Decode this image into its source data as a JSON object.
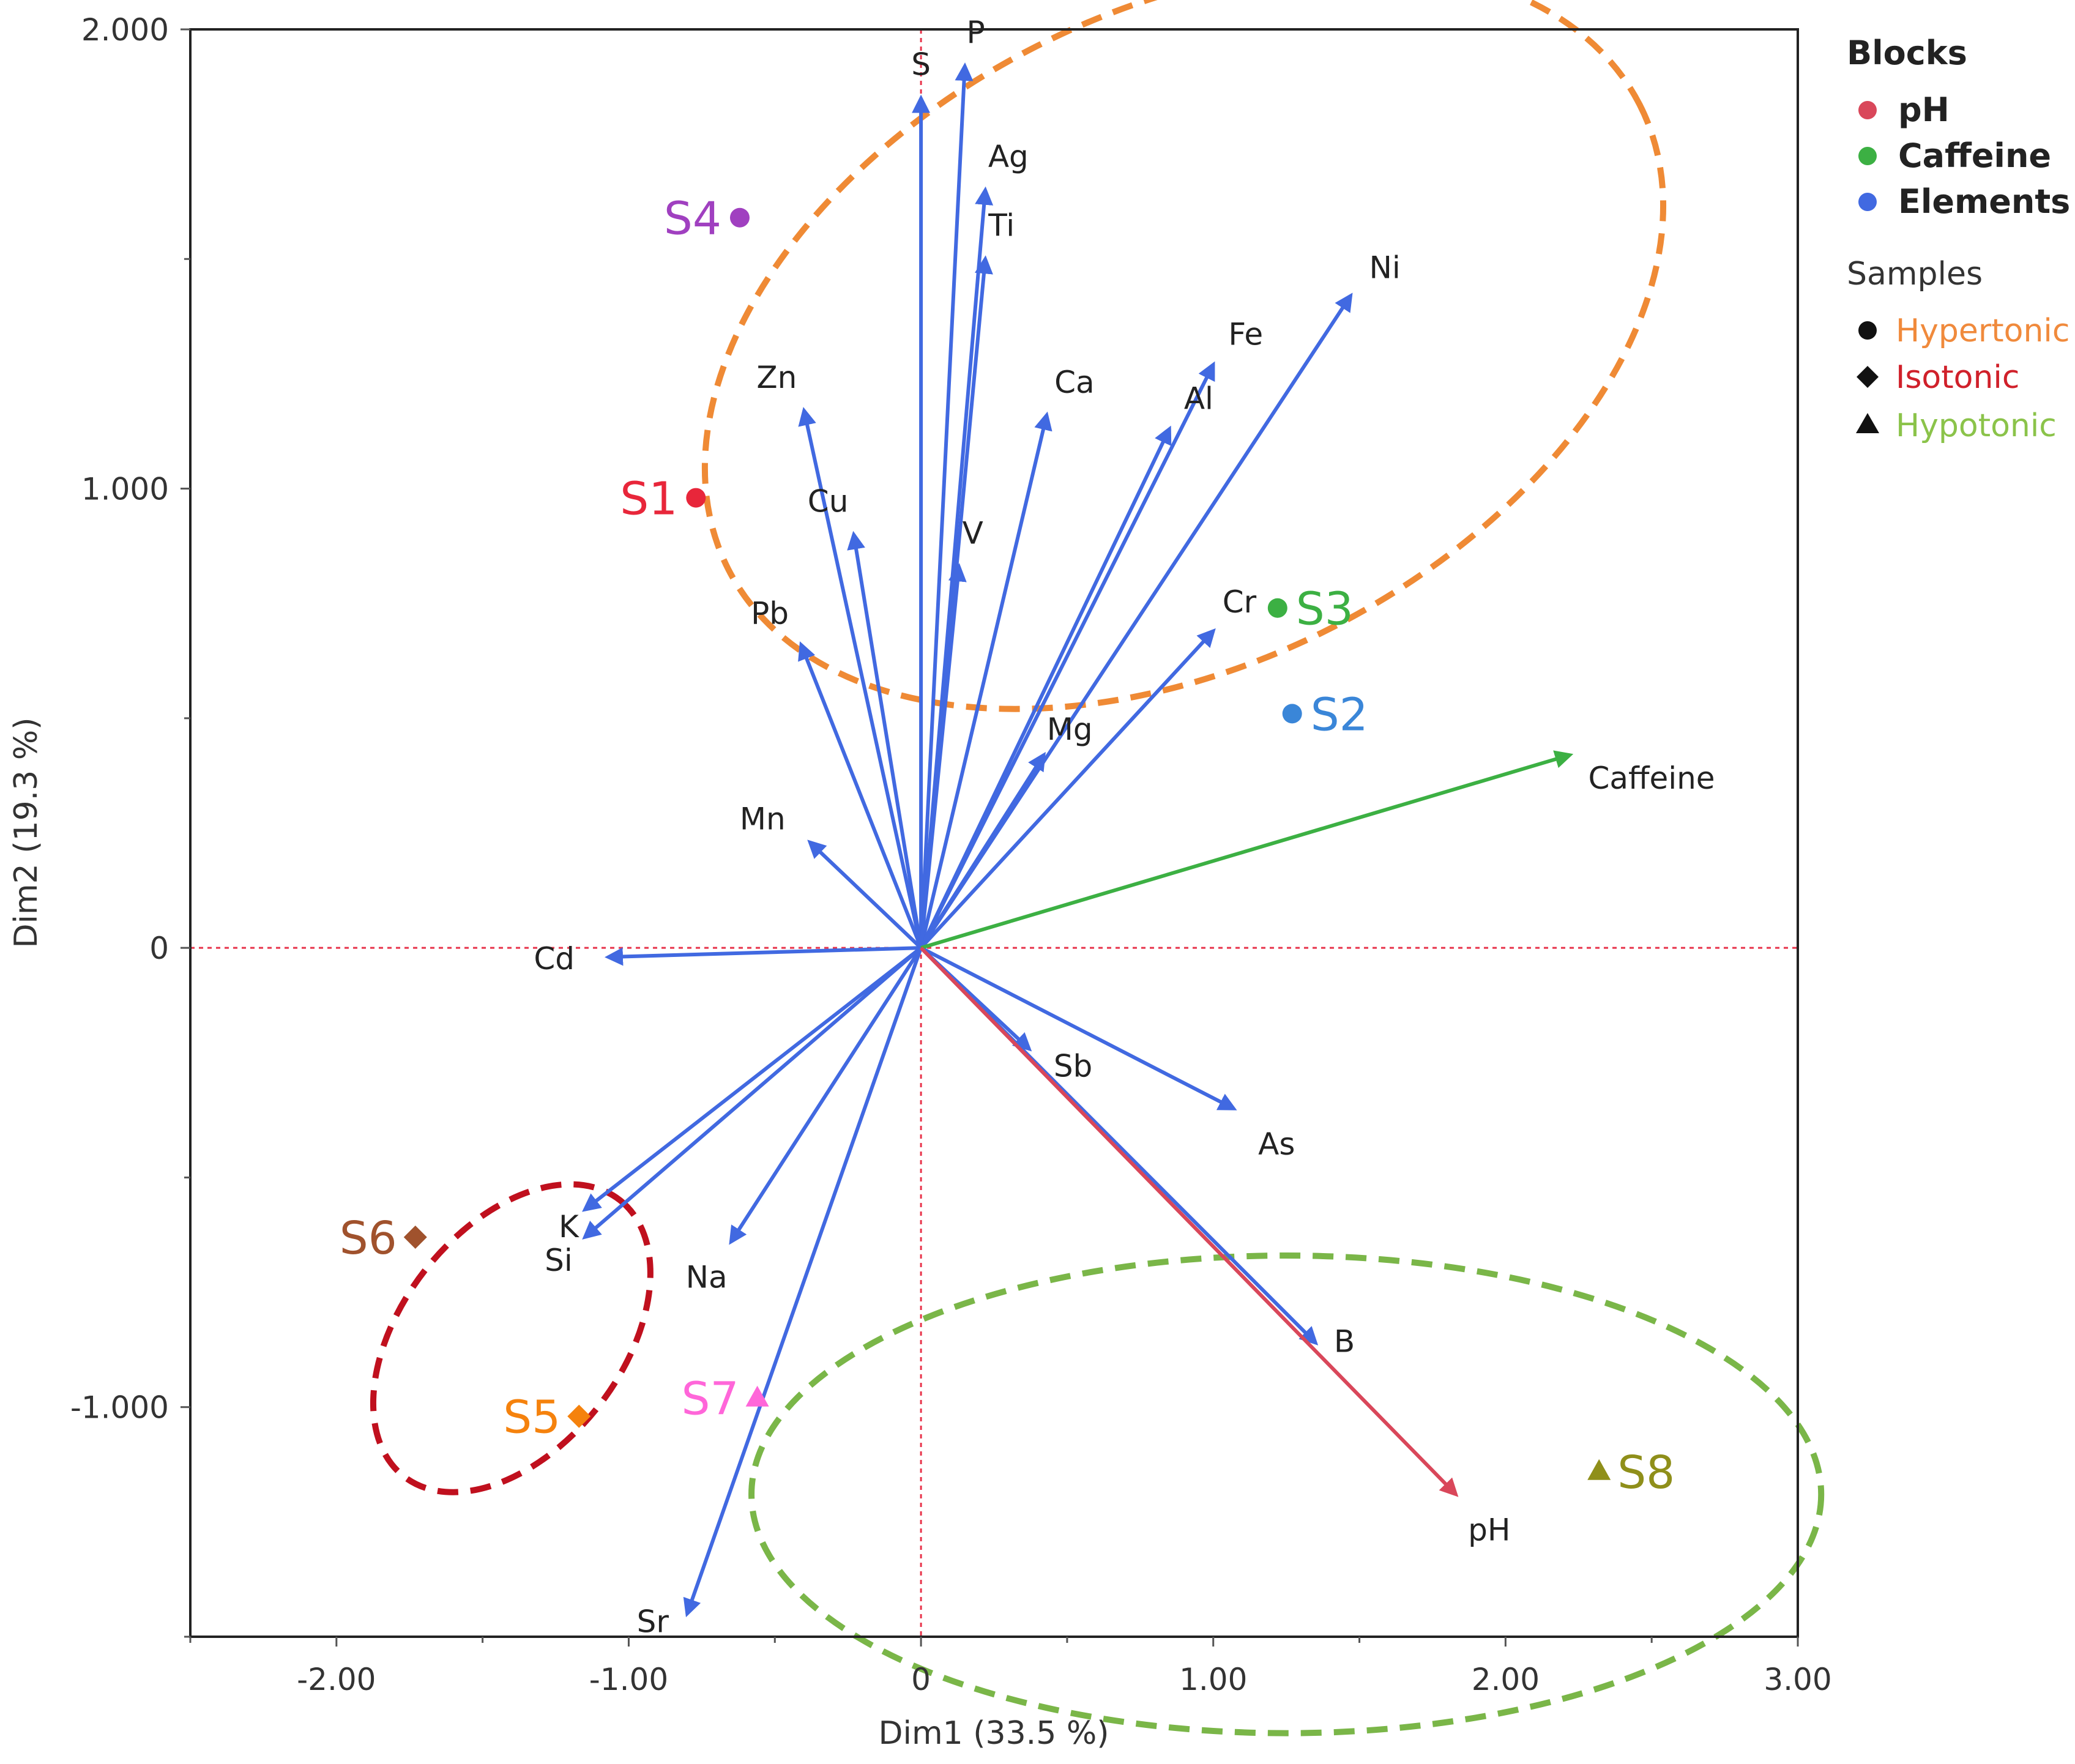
{
  "chart_data": {
    "type": "scatter",
    "subtype": "PCA biplot",
    "xlabel": "Dim1  (33.5 %)",
    "ylabel": "Dim2  (19.3 %)",
    "xlim": [
      -2.5,
      3.0
    ],
    "ylim": [
      -1.5,
      2.0
    ],
    "x_ticks": [
      {
        "value": -2.0,
        "label": "-2.00"
      },
      {
        "value": -1.0,
        "label": "-1.00"
      },
      {
        "value": 0.0,
        "label": "0"
      },
      {
        "value": 1.0,
        "label": "1.00"
      },
      {
        "value": 2.0,
        "label": "2.00"
      },
      {
        "value": 3.0,
        "label": "3.00"
      }
    ],
    "y_ticks": [
      {
        "value": 2.0,
        "label": "2.000"
      },
      {
        "value": 1.0,
        "label": "1.000"
      },
      {
        "value": 0.0,
        "label": "0"
      },
      {
        "value": -1.0,
        "label": "-1.000"
      }
    ],
    "reference_lines": {
      "x": 0,
      "y": 0,
      "color": "#e8334a"
    },
    "blocks_legend": {
      "title": "Blocks",
      "items": [
        {
          "name": "pH",
          "color": "#d9475a"
        },
        {
          "name": "Caffeine",
          "color": "#3cb043"
        },
        {
          "name": "Elements",
          "color": "#4169e1"
        }
      ]
    },
    "samples_legend": {
      "title": "Samples",
      "items": [
        {
          "name": "Hypertonic",
          "marker": "circle",
          "color": "#f08a3c"
        },
        {
          "name": "Isotonic",
          "marker": "diamond",
          "color": "#d0202a"
        },
        {
          "name": "Hypotonic",
          "marker": "triangle",
          "color": "#8bc34a"
        }
      ]
    },
    "vectors": [
      {
        "name": "P",
        "block": "Elements",
        "x": 0.15,
        "y": 1.92
      },
      {
        "name": "S",
        "block": "Elements",
        "x": 0.0,
        "y": 1.85
      },
      {
        "name": "Ag",
        "block": "Elements",
        "x": 0.22,
        "y": 1.65
      },
      {
        "name": "Ti",
        "block": "Elements",
        "x": 0.22,
        "y": 1.5
      },
      {
        "name": "Ni",
        "block": "Elements",
        "x": 1.47,
        "y": 1.42
      },
      {
        "name": "Fe",
        "block": "Elements",
        "x": 1.0,
        "y": 1.27
      },
      {
        "name": "Ca",
        "block": "Elements",
        "x": 0.43,
        "y": 1.16
      },
      {
        "name": "Al",
        "block": "Elements",
        "x": 0.85,
        "y": 1.13
      },
      {
        "name": "Zn",
        "block": "Elements",
        "x": -0.4,
        "y": 1.17
      },
      {
        "name": "Cu",
        "block": "Elements",
        "x": -0.23,
        "y": 0.9
      },
      {
        "name": "V",
        "block": "Elements",
        "x": 0.13,
        "y": 0.83
      },
      {
        "name": "Cr",
        "block": "Elements",
        "x": 1.0,
        "y": 0.69
      },
      {
        "name": "Pb",
        "block": "Elements",
        "x": -0.41,
        "y": 0.66
      },
      {
        "name": "Mg",
        "block": "Elements",
        "x": 0.42,
        "y": 0.42
      },
      {
        "name": "Mn",
        "block": "Elements",
        "x": -0.38,
        "y": 0.23
      },
      {
        "name": "Cd",
        "block": "Elements",
        "x": -1.07,
        "y": -0.02
      },
      {
        "name": "Sb",
        "block": "Elements",
        "x": 0.37,
        "y": -0.22
      },
      {
        "name": "As",
        "block": "Elements",
        "x": 1.07,
        "y": -0.35
      },
      {
        "name": "K",
        "block": "Elements",
        "x": -1.15,
        "y": -0.57
      },
      {
        "name": "Si",
        "block": "Elements",
        "x": -1.15,
        "y": -0.63
      },
      {
        "name": "Na",
        "block": "Elements",
        "x": -0.65,
        "y": -0.64
      },
      {
        "name": "B",
        "block": "Elements",
        "x": 1.35,
        "y": -0.86
      },
      {
        "name": "Sr",
        "block": "Elements",
        "x": -0.8,
        "y": -1.45
      },
      {
        "name": "Caffeine",
        "block": "Caffeine",
        "x": 2.22,
        "y": 0.42
      },
      {
        "name": "pH",
        "block": "pH",
        "x": 1.83,
        "y": -1.19
      }
    ],
    "samples": [
      {
        "name": "S1",
        "x": -0.77,
        "y": 0.98,
        "color": "#e8263a",
        "group": "Hypertonic"
      },
      {
        "name": "S2",
        "x": 1.27,
        "y": 0.51,
        "color": "#3a86d8",
        "group": "Hypertonic"
      },
      {
        "name": "S3",
        "x": 1.22,
        "y": 0.74,
        "color": "#3cb043",
        "group": "Hypertonic"
      },
      {
        "name": "S4",
        "x": -0.62,
        "y": 1.59,
        "color": "#a040c0",
        "group": "Hypertonic"
      },
      {
        "name": "S5",
        "x": -1.17,
        "y": -1.02,
        "color": "#f5820d",
        "group": "Isotonic"
      },
      {
        "name": "S6",
        "x": -1.73,
        "y": -0.63,
        "color": "#a0522d",
        "group": "Isotonic"
      },
      {
        "name": "S7",
        "x": -0.56,
        "y": -0.98,
        "color": "#ff66d9",
        "group": "Hypotonic"
      },
      {
        "name": "S8",
        "x": 2.32,
        "y": -1.14,
        "color": "#8f8f1a",
        "group": "Hypotonic"
      }
    ],
    "group_ellipses": [
      {
        "group": "Hypertonic",
        "color": "#ef8a35",
        "cx": 0.9,
        "cy": 1.33,
        "rx": 1.75,
        "ry": 0.71,
        "angle_deg": -27
      },
      {
        "group": "Isotonic",
        "color": "#c0101e",
        "cx": -1.4,
        "cy": -0.85,
        "rx": 0.6,
        "ry": 0.24,
        "angle_deg": -52
      },
      {
        "group": "Hypotonic",
        "color": "#7ab648",
        "cx": 1.25,
        "cy": -1.19,
        "rx": 1.83,
        "ry": 0.52,
        "angle_deg": 0
      }
    ]
  }
}
